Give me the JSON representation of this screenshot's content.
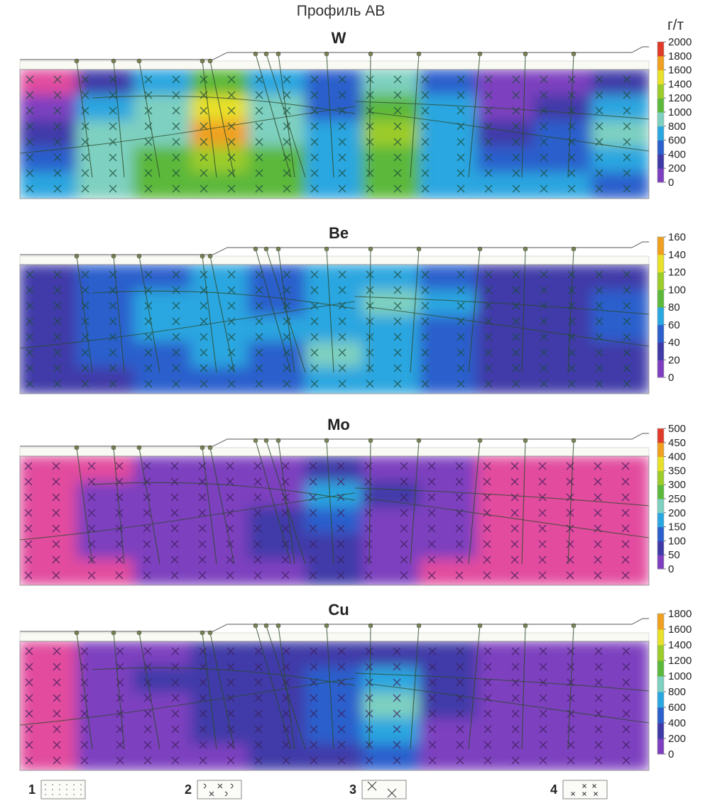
{
  "figure_title": "Профиль АВ",
  "unit_label": "г/т",
  "legend_items": [
    {
      "num": "1",
      "pattern": "dots"
    },
    {
      "num": "2",
      "pattern": "crescent-cross"
    },
    {
      "num": "3",
      "pattern": "big-cross"
    },
    {
      "num": "4",
      "pattern": "small-cross"
    }
  ],
  "palette": [
    "#e24b9e",
    "#7d3fbf",
    "#3f3aa8",
    "#2b5fcc",
    "#2aa6e0",
    "#7ed0c0",
    "#5cb83a",
    "#9ccc2a",
    "#e8e02a",
    "#f0a020",
    "#e03a2a"
  ],
  "chart_data": [
    {
      "type": "heatmap",
      "title": "W",
      "scale_ticks": [
        0,
        200,
        400,
        600,
        800,
        1000,
        1200,
        1400,
        1600,
        1800,
        2000
      ],
      "vmax": 2000,
      "columns": [
        [
          40,
          200,
          400,
          500,
          700
        ],
        [
          300,
          700,
          900,
          900,
          900
        ],
        [
          700,
          900,
          1000,
          1100,
          1100
        ],
        [
          1100,
          1500,
          1700,
          1300,
          1200
        ],
        [
          800,
          900,
          900,
          1100,
          1100
        ],
        [
          500,
          600,
          700,
          800,
          800
        ],
        [
          900,
          1200,
          1300,
          1100,
          1200
        ],
        [
          600,
          700,
          700,
          800,
          800
        ],
        [
          100,
          200,
          400,
          600,
          700
        ],
        [
          200,
          300,
          500,
          600,
          700
        ],
        [
          300,
          700,
          900,
          700,
          600
        ]
      ]
    },
    {
      "type": "heatmap",
      "title": "Be",
      "scale_ticks": [
        0,
        20,
        40,
        60,
        80,
        100,
        120,
        140,
        160
      ],
      "vmax": 160,
      "columns": [
        [
          30,
          30,
          30,
          30,
          30
        ],
        [
          45,
          45,
          40,
          40,
          30
        ],
        [
          55,
          60,
          60,
          55,
          40
        ],
        [
          60,
          70,
          65,
          60,
          50
        ],
        [
          45,
          40,
          60,
          50,
          40
        ],
        [
          60,
          70,
          70,
          85,
          70
        ],
        [
          70,
          80,
          70,
          70,
          60
        ],
        [
          55,
          60,
          55,
          55,
          55
        ],
        [
          30,
          30,
          30,
          30,
          30
        ],
        [
          25,
          30,
          30,
          25,
          25
        ],
        [
          30,
          45,
          40,
          30,
          30
        ]
      ]
    },
    {
      "type": "heatmap",
      "title": "Mo",
      "scale_ticks": [
        0,
        50,
        100,
        150,
        200,
        250,
        300,
        350,
        400,
        450,
        500
      ],
      "vmax": 500,
      "columns": [
        [
          20,
          20,
          20,
          20,
          20
        ],
        [
          20,
          40,
          40,
          40,
          20
        ],
        [
          40,
          50,
          50,
          40,
          30
        ],
        [
          50,
          50,
          50,
          50,
          40
        ],
        [
          60,
          70,
          80,
          80,
          70
        ],
        [
          80,
          180,
          150,
          100,
          90
        ],
        [
          70,
          80,
          70,
          70,
          60
        ],
        [
          60,
          50,
          40,
          30,
          20
        ],
        [
          20,
          20,
          20,
          20,
          20
        ],
        [
          20,
          20,
          20,
          20,
          20
        ],
        [
          20,
          20,
          20,
          20,
          20
        ]
      ]
    },
    {
      "type": "heatmap",
      "title": "Cu",
      "scale_ticks": [
        0,
        200,
        400,
        600,
        800,
        1000,
        1200,
        1400,
        1600,
        1800
      ],
      "vmax": 1800,
      "columns": [
        [
          80,
          80,
          80,
          80,
          80
        ],
        [
          150,
          200,
          200,
          150,
          150
        ],
        [
          250,
          300,
          250,
          250,
          200
        ],
        [
          300,
          300,
          350,
          300,
          250
        ],
        [
          350,
          400,
          400,
          350,
          300
        ],
        [
          400,
          500,
          450,
          450,
          400
        ],
        [
          400,
          700,
          900,
          700,
          600
        ],
        [
          300,
          350,
          300,
          250,
          200
        ],
        [
          150,
          150,
          150,
          150,
          150
        ],
        [
          120,
          120,
          120,
          120,
          120
        ],
        [
          150,
          200,
          150,
          150,
          150
        ]
      ]
    }
  ]
}
